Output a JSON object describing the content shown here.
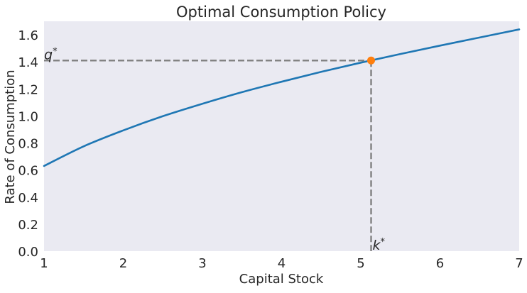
{
  "chart_data": {
    "type": "line",
    "title": "Optimal Consumption Policy",
    "xlabel": "Capital Stock",
    "ylabel": "Rate of Consumption",
    "xlim": [
      1,
      7
    ],
    "ylim": [
      0,
      1.7
    ],
    "xticks": [
      1,
      2,
      3,
      4,
      5,
      6,
      7
    ],
    "xtick_labels": [
      "1",
      "2",
      "3",
      "4",
      "5",
      "6",
      "7"
    ],
    "yticks": [
      0.0,
      0.2,
      0.4,
      0.6,
      0.8,
      1.0,
      1.2,
      1.4,
      1.6
    ],
    "ytick_labels": [
      "0.0",
      "0.2",
      "0.4",
      "0.6",
      "0.8",
      "1.0",
      "1.2",
      "1.4",
      "1.6"
    ],
    "grid": false,
    "background_color": "#EAEAF2",
    "series": [
      {
        "color": "#1F77B4",
        "x": [
          1.0,
          1.5,
          2.0,
          2.5,
          3.0,
          3.5,
          4.0,
          4.5,
          5.0,
          5.5,
          6.0,
          6.5,
          7.0
        ],
        "y": [
          0.63,
          0.775,
          0.893,
          0.998,
          1.09,
          1.176,
          1.253,
          1.326,
          1.394,
          1.458,
          1.52,
          1.58,
          1.64
        ]
      }
    ],
    "steady_state": {
      "x": 5.13,
      "y": 1.41,
      "marker_color": "#FF7F0E",
      "guide_color": "#808080",
      "x_label": "k*",
      "y_label": "q*"
    }
  }
}
